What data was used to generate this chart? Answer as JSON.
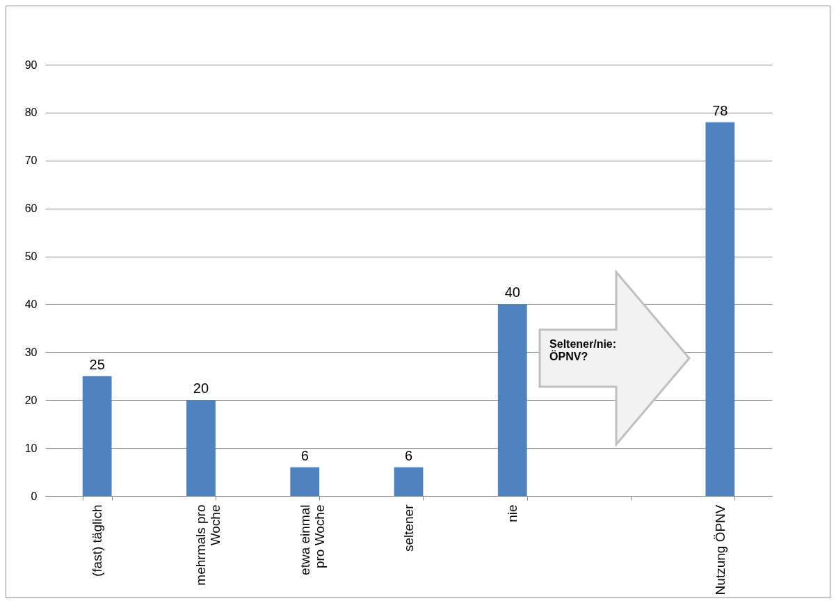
{
  "chart_data": {
    "type": "bar",
    "categories": [
      "(fast) täglich",
      "mehrmals pro Woche",
      "etwa einmal pro Woche",
      "seltener",
      "nie",
      null,
      "Nutzung ÖPNV"
    ],
    "values": [
      25,
      20,
      6,
      6,
      40,
      null,
      78
    ],
    "color": "#4f81bd",
    "ylim": [
      0,
      90
    ],
    "yticks": [
      0,
      10,
      20,
      30,
      40,
      50,
      60,
      70,
      80,
      90
    ],
    "grid": "y",
    "data_labels": true,
    "annotations": [
      "Seltener/nie: ÖPNV?"
    ]
  }
}
